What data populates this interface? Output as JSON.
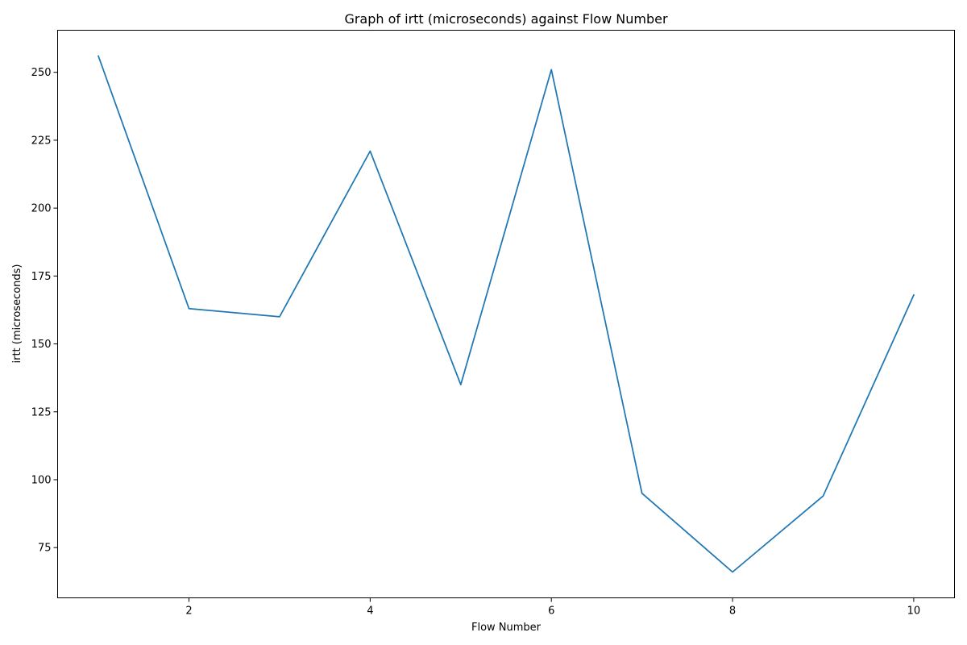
{
  "chart_data": {
    "type": "line",
    "title": "Graph of irtt (microseconds) against Flow Number",
    "xlabel": "Flow Number",
    "ylabel": "irtt (microseconds)",
    "x": [
      1,
      2,
      3,
      4,
      5,
      6,
      7,
      8,
      9,
      10
    ],
    "series": [
      {
        "values": [
          256,
          163,
          160,
          221,
          135,
          251,
          95,
          66,
          94,
          168
        ],
        "color": "#1f77b4"
      }
    ],
    "xlim": [
      0.55,
      10.45
    ],
    "ylim": [
      56.5,
      265.5
    ],
    "xticks": [
      2,
      4,
      6,
      8,
      10
    ],
    "yticks": [
      75,
      100,
      125,
      150,
      175,
      200,
      225,
      250
    ],
    "grid": false,
    "legend": "none"
  }
}
